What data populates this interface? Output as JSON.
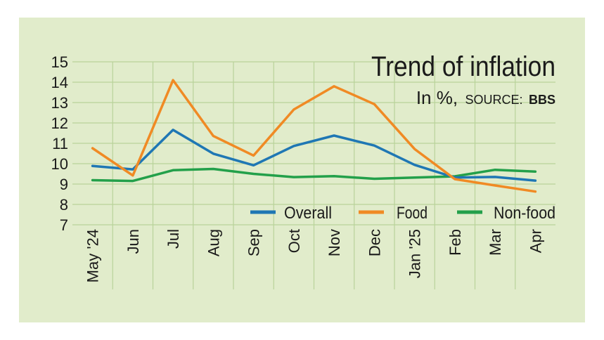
{
  "colors": {
    "background": "#e1eccb",
    "grid": "#b9d39a",
    "overall": "#1f77b4",
    "food": "#f08a24",
    "nonfood": "#23a04a"
  },
  "chart_data": {
    "type": "line",
    "title": "Trend of inflation",
    "subtitle": {
      "units": "In %,",
      "source_label": "SOURCE:",
      "source": "BBS"
    },
    "categories": [
      "May '24",
      "Jun",
      "Jul",
      "Aug",
      "Sep",
      "Oct",
      "Nov",
      "Dec",
      "Jan '25",
      "Feb",
      "Mar",
      "Apr"
    ],
    "ylim": [
      7,
      15
    ],
    "yticks": [
      7,
      8,
      9,
      10,
      11,
      12,
      13,
      14,
      15
    ],
    "grid": true,
    "legend_position": "bottom-right",
    "series": [
      {
        "name": "Overall",
        "color": "#1f77b4",
        "values": [
          9.89,
          9.72,
          11.66,
          10.49,
          9.92,
          10.87,
          11.38,
          10.89,
          9.94,
          9.32,
          9.35,
          9.17
        ]
      },
      {
        "name": "Food",
        "color": "#f08a24",
        "values": [
          10.76,
          9.42,
          14.1,
          11.36,
          10.4,
          12.66,
          13.8,
          12.92,
          10.72,
          9.24,
          8.93,
          8.63
        ]
      },
      {
        "name": "Non-food",
        "color": "#23a04a",
        "values": [
          9.19,
          9.15,
          9.68,
          9.74,
          9.5,
          9.34,
          9.39,
          9.26,
          9.32,
          9.38,
          9.7,
          9.61
        ]
      }
    ]
  }
}
